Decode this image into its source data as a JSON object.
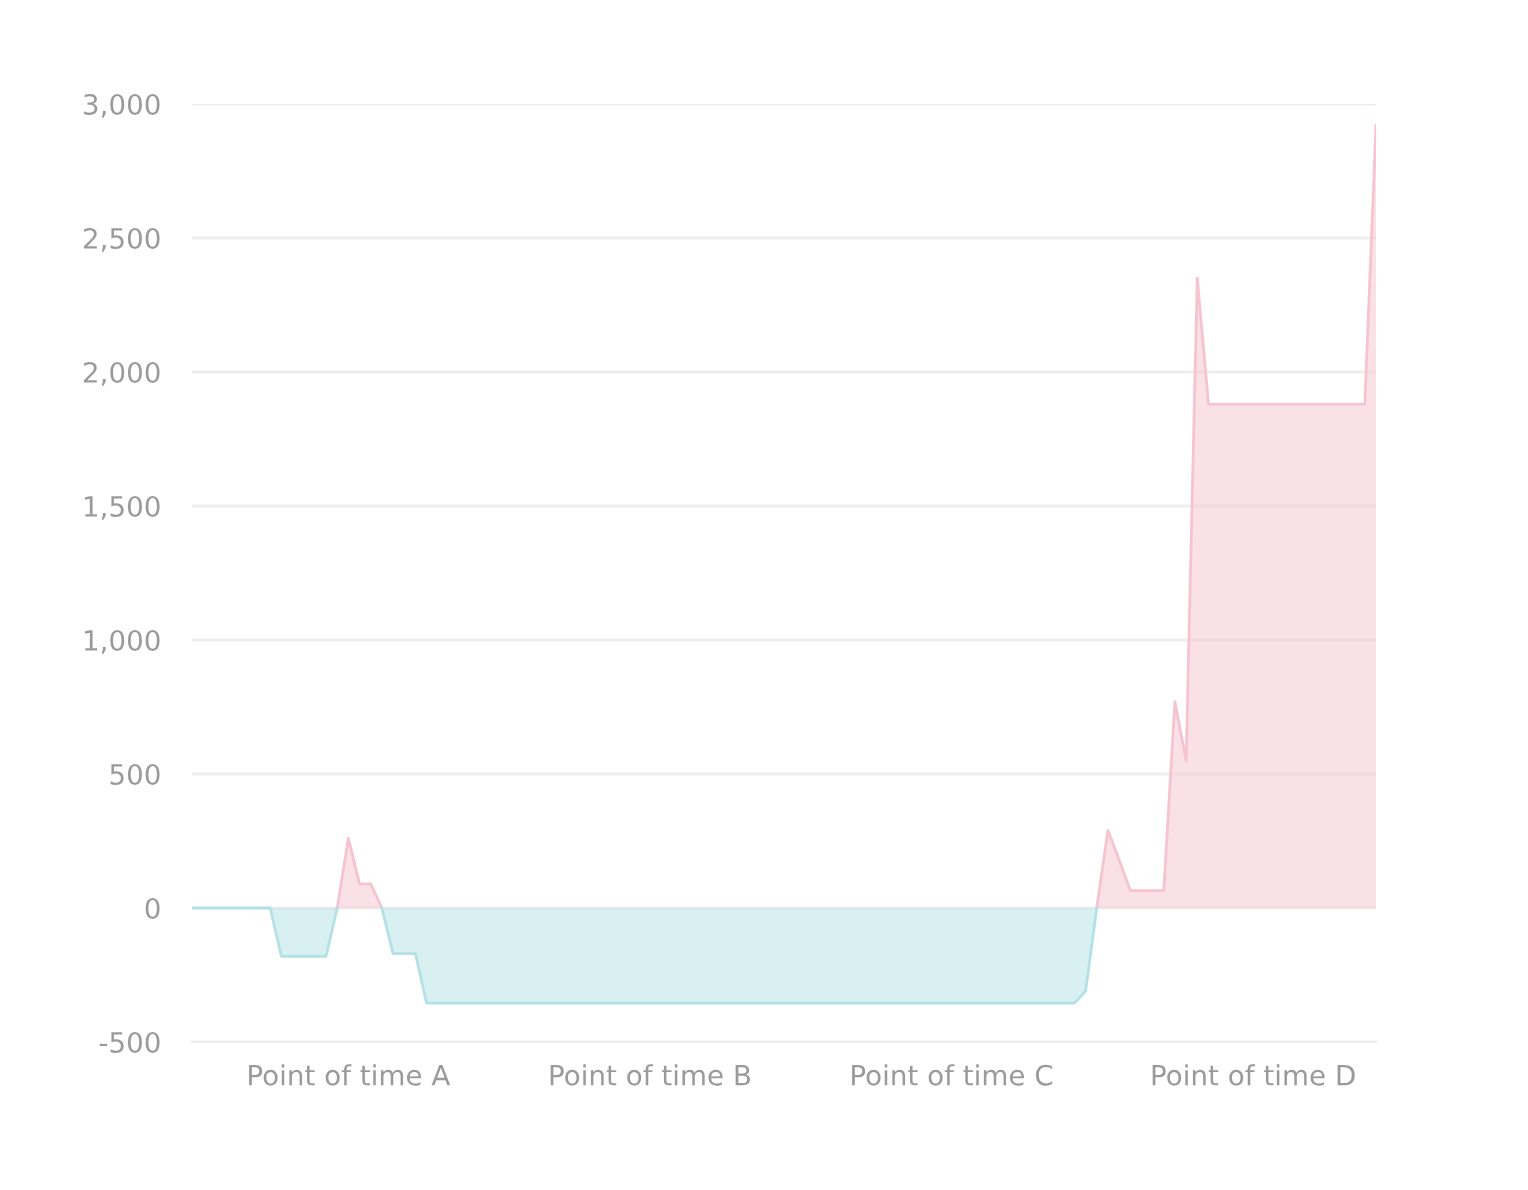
{
  "chart_data": {
    "type": "area",
    "categories": [
      null,
      null,
      null,
      null,
      null,
      null,
      null,
      null,
      null,
      null,
      null,
      null,
      null,
      null,
      "Point of time A",
      null,
      null,
      null,
      null,
      null,
      null,
      null,
      null,
      null,
      null,
      null,
      null,
      null,
      null,
      null,
      null,
      null,
      null,
      null,
      null,
      null,
      null,
      null,
      null,
      null,
      null,
      "Point of time B",
      null,
      null,
      null,
      null,
      null,
      null,
      null,
      null,
      null,
      null,
      null,
      null,
      null,
      null,
      null,
      null,
      null,
      null,
      null,
      null,
      null,
      null,
      null,
      null,
      null,
      null,
      "Point of time C",
      null,
      null,
      null,
      null,
      null,
      null,
      null,
      null,
      null,
      null,
      null,
      null,
      null,
      null,
      null,
      null,
      null,
      null,
      null,
      null,
      null,
      null,
      null,
      null,
      null,
      null,
      "Point of time D",
      null,
      null,
      null,
      null,
      null,
      null,
      null,
      null,
      null,
      null,
      null
    ],
    "ylim": [
      -500,
      3000
    ],
    "yticks": [
      -500,
      0,
      500,
      {
        "value": 1000,
        "label": "1,000"
      },
      {
        "value": 1500,
        "label": "1,500"
      },
      {
        "value": 2000,
        "label": "2,000"
      },
      {
        "value": 2500,
        "label": "2,500"
      },
      {
        "value": 3000,
        "label": "3,000"
      }
    ],
    "grid": "y",
    "series": [
      {
        "color": "#f6c3d1",
        "values": [
          null,
          null,
          null,
          null,
          null,
          null,
          null,
          null,
          null,
          null,
          null,
          null,
          null,
          0,
          260,
          90,
          90,
          0,
          null,
          null,
          null,
          null,
          null,
          null,
          null,
          null,
          null,
          null,
          null,
          null,
          null,
          null,
          null,
          null,
          null,
          null,
          null,
          null,
          null,
          null,
          null,
          null,
          null,
          null,
          null,
          null,
          null,
          null,
          null,
          null,
          null,
          null,
          null,
          null,
          null,
          null,
          null,
          null,
          null,
          null,
          null,
          null,
          null,
          null,
          null,
          null,
          null,
          null,
          null,
          null,
          null,
          null,
          null,
          null,
          null,
          null,
          null,
          null,
          null,
          null,
          null,
          0,
          290,
          180,
          65,
          65,
          65,
          65,
          770,
          550,
          2350,
          1880,
          1880,
          1880,
          1880,
          1880,
          1880,
          1880,
          1880,
          1880,
          1880,
          1880,
          1880,
          1880,
          1880,
          1880,
          2920
        ]
      },
      {
        "color": "#b3e1e6",
        "values": [
          0,
          0,
          0,
          0,
          0,
          0,
          0,
          0,
          -180,
          -180,
          -180,
          -180,
          -180,
          0,
          null,
          null,
          null,
          0,
          -170,
          -170,
          -170,
          -355,
          -355,
          -355,
          -355,
          -355,
          -355,
          -355,
          -355,
          -355,
          -355,
          -355,
          -355,
          -355,
          -355,
          -355,
          -355,
          -355,
          -355,
          -355,
          -355,
          -355,
          -355,
          -355,
          -355,
          -355,
          -355,
          -355,
          -355,
          -355,
          -355,
          -355,
          -355,
          -355,
          -355,
          -355,
          -355,
          -355,
          -355,
          -355,
          -355,
          -355,
          -355,
          -355,
          -355,
          -355,
          -355,
          -355,
          -355,
          -355,
          -355,
          -355,
          -355,
          -355,
          -355,
          -355,
          -355,
          -355,
          -355,
          -355,
          -310,
          0,
          null,
          null,
          null,
          null,
          null,
          null,
          null,
          null,
          null,
          null,
          null,
          null,
          null,
          null,
          null,
          null,
          null,
          null,
          null,
          null,
          null,
          null,
          null,
          null,
          null
        ]
      }
    ]
  }
}
